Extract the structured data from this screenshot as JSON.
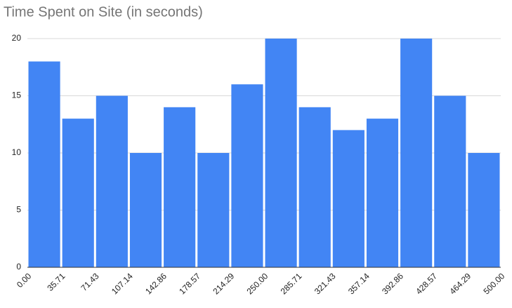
{
  "chart_data": {
    "type": "histogram",
    "title": "Time Spent on Site (in seconds)",
    "bins": [
      0,
      35.71,
      71.43,
      107.14,
      142.86,
      178.57,
      214.29,
      250,
      285.71,
      321.43,
      357.14,
      392.86,
      428.57,
      464.29,
      500
    ],
    "values": [
      18,
      13,
      15,
      10,
      14,
      10,
      16,
      20,
      14,
      12,
      13,
      20,
      15,
      10
    ],
    "color": "#4285f4",
    "xlim": [
      0,
      500
    ],
    "xticks": [
      {
        "value": 0,
        "label": "0.00"
      },
      35.71,
      71.43,
      107.14,
      142.86,
      178.57,
      214.29,
      {
        "value": 250,
        "label": "250.00"
      },
      285.71,
      321.43,
      357.14,
      392.86,
      428.57,
      464.29,
      {
        "value": 500,
        "label": "500.00"
      }
    ],
    "ylim": [
      0,
      20
    ],
    "yticks": [
      0,
      5,
      10,
      15,
      20
    ],
    "grid": true
  }
}
